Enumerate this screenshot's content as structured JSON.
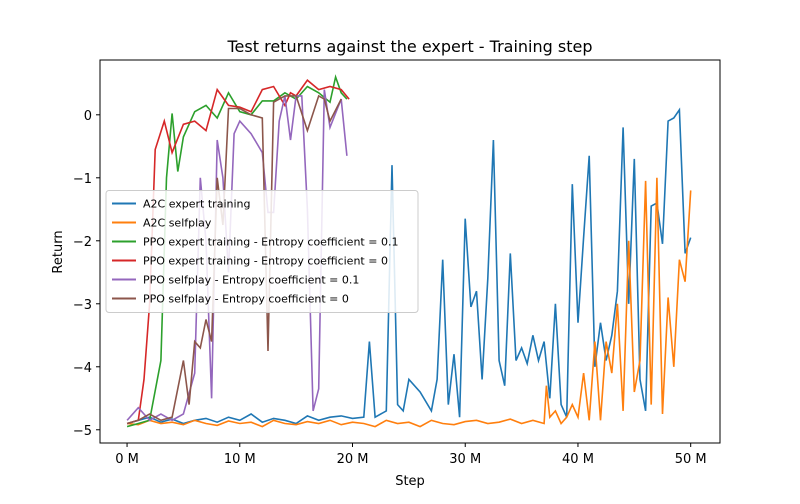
{
  "chart_data": {
    "type": "line",
    "title": "Test returns against the expert - Training step",
    "x_label": "Step",
    "y_label": "Return",
    "xlim": [
      -2.4,
      52.6
    ],
    "ylim": [
      -5.21,
      0.87
    ],
    "xticks": [
      {
        "value": 0,
        "label": "0 M"
      },
      {
        "value": 10,
        "label": "10 M"
      },
      {
        "value": 20,
        "label": "20 M"
      },
      {
        "value": 30,
        "label": "30 M"
      },
      {
        "value": 40,
        "label": "40 M"
      },
      {
        "value": 50,
        "label": "50 M"
      }
    ],
    "yticks": [
      {
        "value": -5,
        "label": "−5"
      },
      {
        "value": -4,
        "label": "−4"
      },
      {
        "value": -3,
        "label": "−3"
      },
      {
        "value": -2,
        "label": "−2"
      },
      {
        "value": -1,
        "label": "−1"
      },
      0
    ],
    "legend": "center left",
    "series": [
      {
        "name": "A2C expert training",
        "color": "#1f77b4",
        "x": [
          0,
          1,
          2,
          3,
          4,
          5,
          6,
          7,
          8,
          9,
          10,
          11,
          12,
          13,
          14,
          15,
          16,
          17,
          18,
          19,
          20,
          21,
          21.5,
          22,
          23,
          23.5,
          24,
          24.5,
          25,
          26,
          27,
          27.5,
          28,
          28.5,
          29,
          29.5,
          30,
          30.5,
          31,
          31.5,
          32,
          32.5,
          33,
          33.5,
          34,
          34.5,
          35,
          35.5,
          36,
          36.5,
          37,
          37.5,
          38,
          38.5,
          39,
          39.5,
          40,
          40.5,
          41,
          41.5,
          42,
          42.5,
          43,
          43.5,
          44,
          44.5,
          45,
          45.5,
          46,
          46.5,
          47,
          47.5,
          48,
          48.5,
          49,
          49.5,
          50
        ],
        "values": [
          -4.9,
          -4.85,
          -4.8,
          -4.88,
          -4.83,
          -4.9,
          -4.85,
          -4.82,
          -4.88,
          -4.8,
          -4.85,
          -4.75,
          -4.88,
          -4.82,
          -4.85,
          -4.9,
          -4.78,
          -4.85,
          -4.8,
          -4.78,
          -4.82,
          -4.8,
          -3.6,
          -4.8,
          -4.7,
          -0.8,
          -4.6,
          -4.7,
          -4.2,
          -4.4,
          -4.7,
          -4.2,
          -2.3,
          -4.6,
          -3.8,
          -4.8,
          -1.65,
          -3.05,
          -2.8,
          -4.2,
          -2.6,
          -0.4,
          -3.9,
          -4.3,
          -2.2,
          -3.9,
          -3.7,
          -3.95,
          -3.5,
          -3.9,
          -3.6,
          -4.5,
          -3.0,
          -4.6,
          -4.8,
          -1.1,
          -3.3,
          -1.95,
          -0.65,
          -4.0,
          -3.3,
          -3.9,
          -3.5,
          -2.8,
          -0.2,
          -3.0,
          -0.7,
          -4.2,
          -4.7,
          -1.45,
          -1.4,
          -2.05,
          -0.1,
          -0.05,
          0.08,
          -2.2,
          -1.95
        ]
      },
      {
        "name": "A2C selfplay",
        "color": "#ff7f0e",
        "x": [
          0,
          1,
          2,
          3,
          4,
          5,
          6,
          7,
          8,
          9,
          10,
          11,
          12,
          13,
          14,
          15,
          16,
          17,
          18,
          19,
          20,
          21,
          22,
          23,
          24,
          25,
          26,
          27,
          28,
          29,
          30,
          31,
          32,
          33,
          34,
          35,
          36,
          37,
          37.2,
          37.5,
          38,
          38.5,
          39,
          39.5,
          40,
          40.5,
          41,
          41.5,
          42,
          42.5,
          43,
          43.5,
          44,
          44.5,
          45,
          45.5,
          46,
          46.5,
          47,
          47.5,
          48,
          48.5,
          49,
          49.5,
          50
        ],
        "values": [
          -4.9,
          -4.92,
          -4.85,
          -4.9,
          -4.88,
          -4.92,
          -4.85,
          -4.9,
          -4.93,
          -4.86,
          -4.9,
          -4.88,
          -4.95,
          -4.85,
          -4.9,
          -4.92,
          -4.87,
          -4.9,
          -4.85,
          -4.92,
          -4.88,
          -4.9,
          -4.95,
          -4.85,
          -4.9,
          -4.88,
          -4.95,
          -4.85,
          -4.9,
          -4.92,
          -4.87,
          -4.85,
          -4.9,
          -4.88,
          -4.83,
          -4.9,
          -4.85,
          -4.9,
          -4.3,
          -4.8,
          -4.7,
          -4.9,
          -4.8,
          -4.6,
          -4.8,
          -4.1,
          -4.85,
          -3.6,
          -4.85,
          -3.6,
          -4.1,
          -3.0,
          -4.7,
          -2.0,
          -4.4,
          -3.9,
          -1.05,
          -4.6,
          -1.0,
          -4.75,
          -2.9,
          -4.0,
          -2.3,
          -2.65,
          -1.2
        ]
      },
      {
        "name": "PPO expert training - Entropy coefficient = 0.1",
        "color": "#2ca02c",
        "x": [
          0,
          1,
          2,
          3,
          3.5,
          4,
          4.5,
          5,
          6,
          7,
          8,
          9,
          10,
          11,
          12,
          13,
          14,
          15,
          16,
          17,
          18,
          18.5,
          19,
          19.5
        ],
        "values": [
          -4.95,
          -4.9,
          -4.85,
          -3.9,
          -1.0,
          0.02,
          -0.9,
          -0.35,
          0.05,
          0.15,
          -0.05,
          0.35,
          0.05,
          0.0,
          0.22,
          0.22,
          0.35,
          0.25,
          0.45,
          0.35,
          0.2,
          0.6,
          0.35,
          0.25
        ]
      },
      {
        "name": "PPO expert training - Entropy coefficient = 0",
        "color": "#d62728",
        "x": [
          0,
          1,
          1.5,
          2,
          2.5,
          3.3,
          4,
          5,
          6,
          7,
          8,
          9,
          10,
          11,
          12,
          13,
          14,
          14.5,
          15,
          16,
          17,
          18,
          19,
          19.7
        ],
        "values": [
          -4.9,
          -4.85,
          -4.2,
          -3.0,
          -0.55,
          -0.1,
          -0.6,
          -0.15,
          -0.1,
          -0.25,
          0.4,
          0.15,
          0.12,
          0.05,
          0.4,
          0.45,
          0.15,
          0.35,
          0.3,
          0.55,
          0.4,
          0.45,
          0.4,
          0.25
        ]
      },
      {
        "name": "PPO selfplay - Entropy coefficient = 0.1",
        "color": "#9467bd",
        "x": [
          0,
          1,
          2,
          3,
          4,
          5,
          6,
          6.5,
          7,
          7.5,
          8,
          8.5,
          9,
          9.5,
          10,
          11,
          12,
          12.5,
          13,
          13.5,
          14,
          14.5,
          15,
          15.5,
          16,
          16.5,
          17,
          17.5,
          18,
          19,
          19.5
        ],
        "values": [
          -4.85,
          -4.65,
          -4.85,
          -4.75,
          -4.85,
          -4.75,
          -4.1,
          -1.0,
          -2.0,
          -4.5,
          -0.4,
          -1.0,
          -2.5,
          -0.3,
          -0.1,
          -0.3,
          -0.6,
          -1.55,
          -1.55,
          -0.1,
          0.3,
          -0.4,
          0.3,
          0.3,
          -1.5,
          -4.7,
          -4.35,
          0.4,
          -0.2,
          0.25,
          -0.65
        ]
      },
      {
        "name": "PPO selfplay - Entropy coefficient = 0",
        "color": "#8c564b",
        "x": [
          0,
          1,
          2,
          3,
          4,
          5,
          5.5,
          6,
          6.5,
          7,
          7.5,
          8,
          8.5,
          9,
          10,
          11,
          12,
          12.5,
          13,
          14,
          15,
          16,
          17,
          17.5,
          18,
          19
        ],
        "values": [
          -4.9,
          -4.85,
          -4.75,
          -4.85,
          -4.8,
          -3.9,
          -4.6,
          -3.6,
          -3.7,
          -3.25,
          -3.6,
          -1.0,
          -1.75,
          0.1,
          0.1,
          0.0,
          -0.05,
          -3.75,
          0.2,
          0.3,
          0.3,
          -0.25,
          0.3,
          0.25,
          -0.1,
          0.25
        ]
      }
    ]
  }
}
